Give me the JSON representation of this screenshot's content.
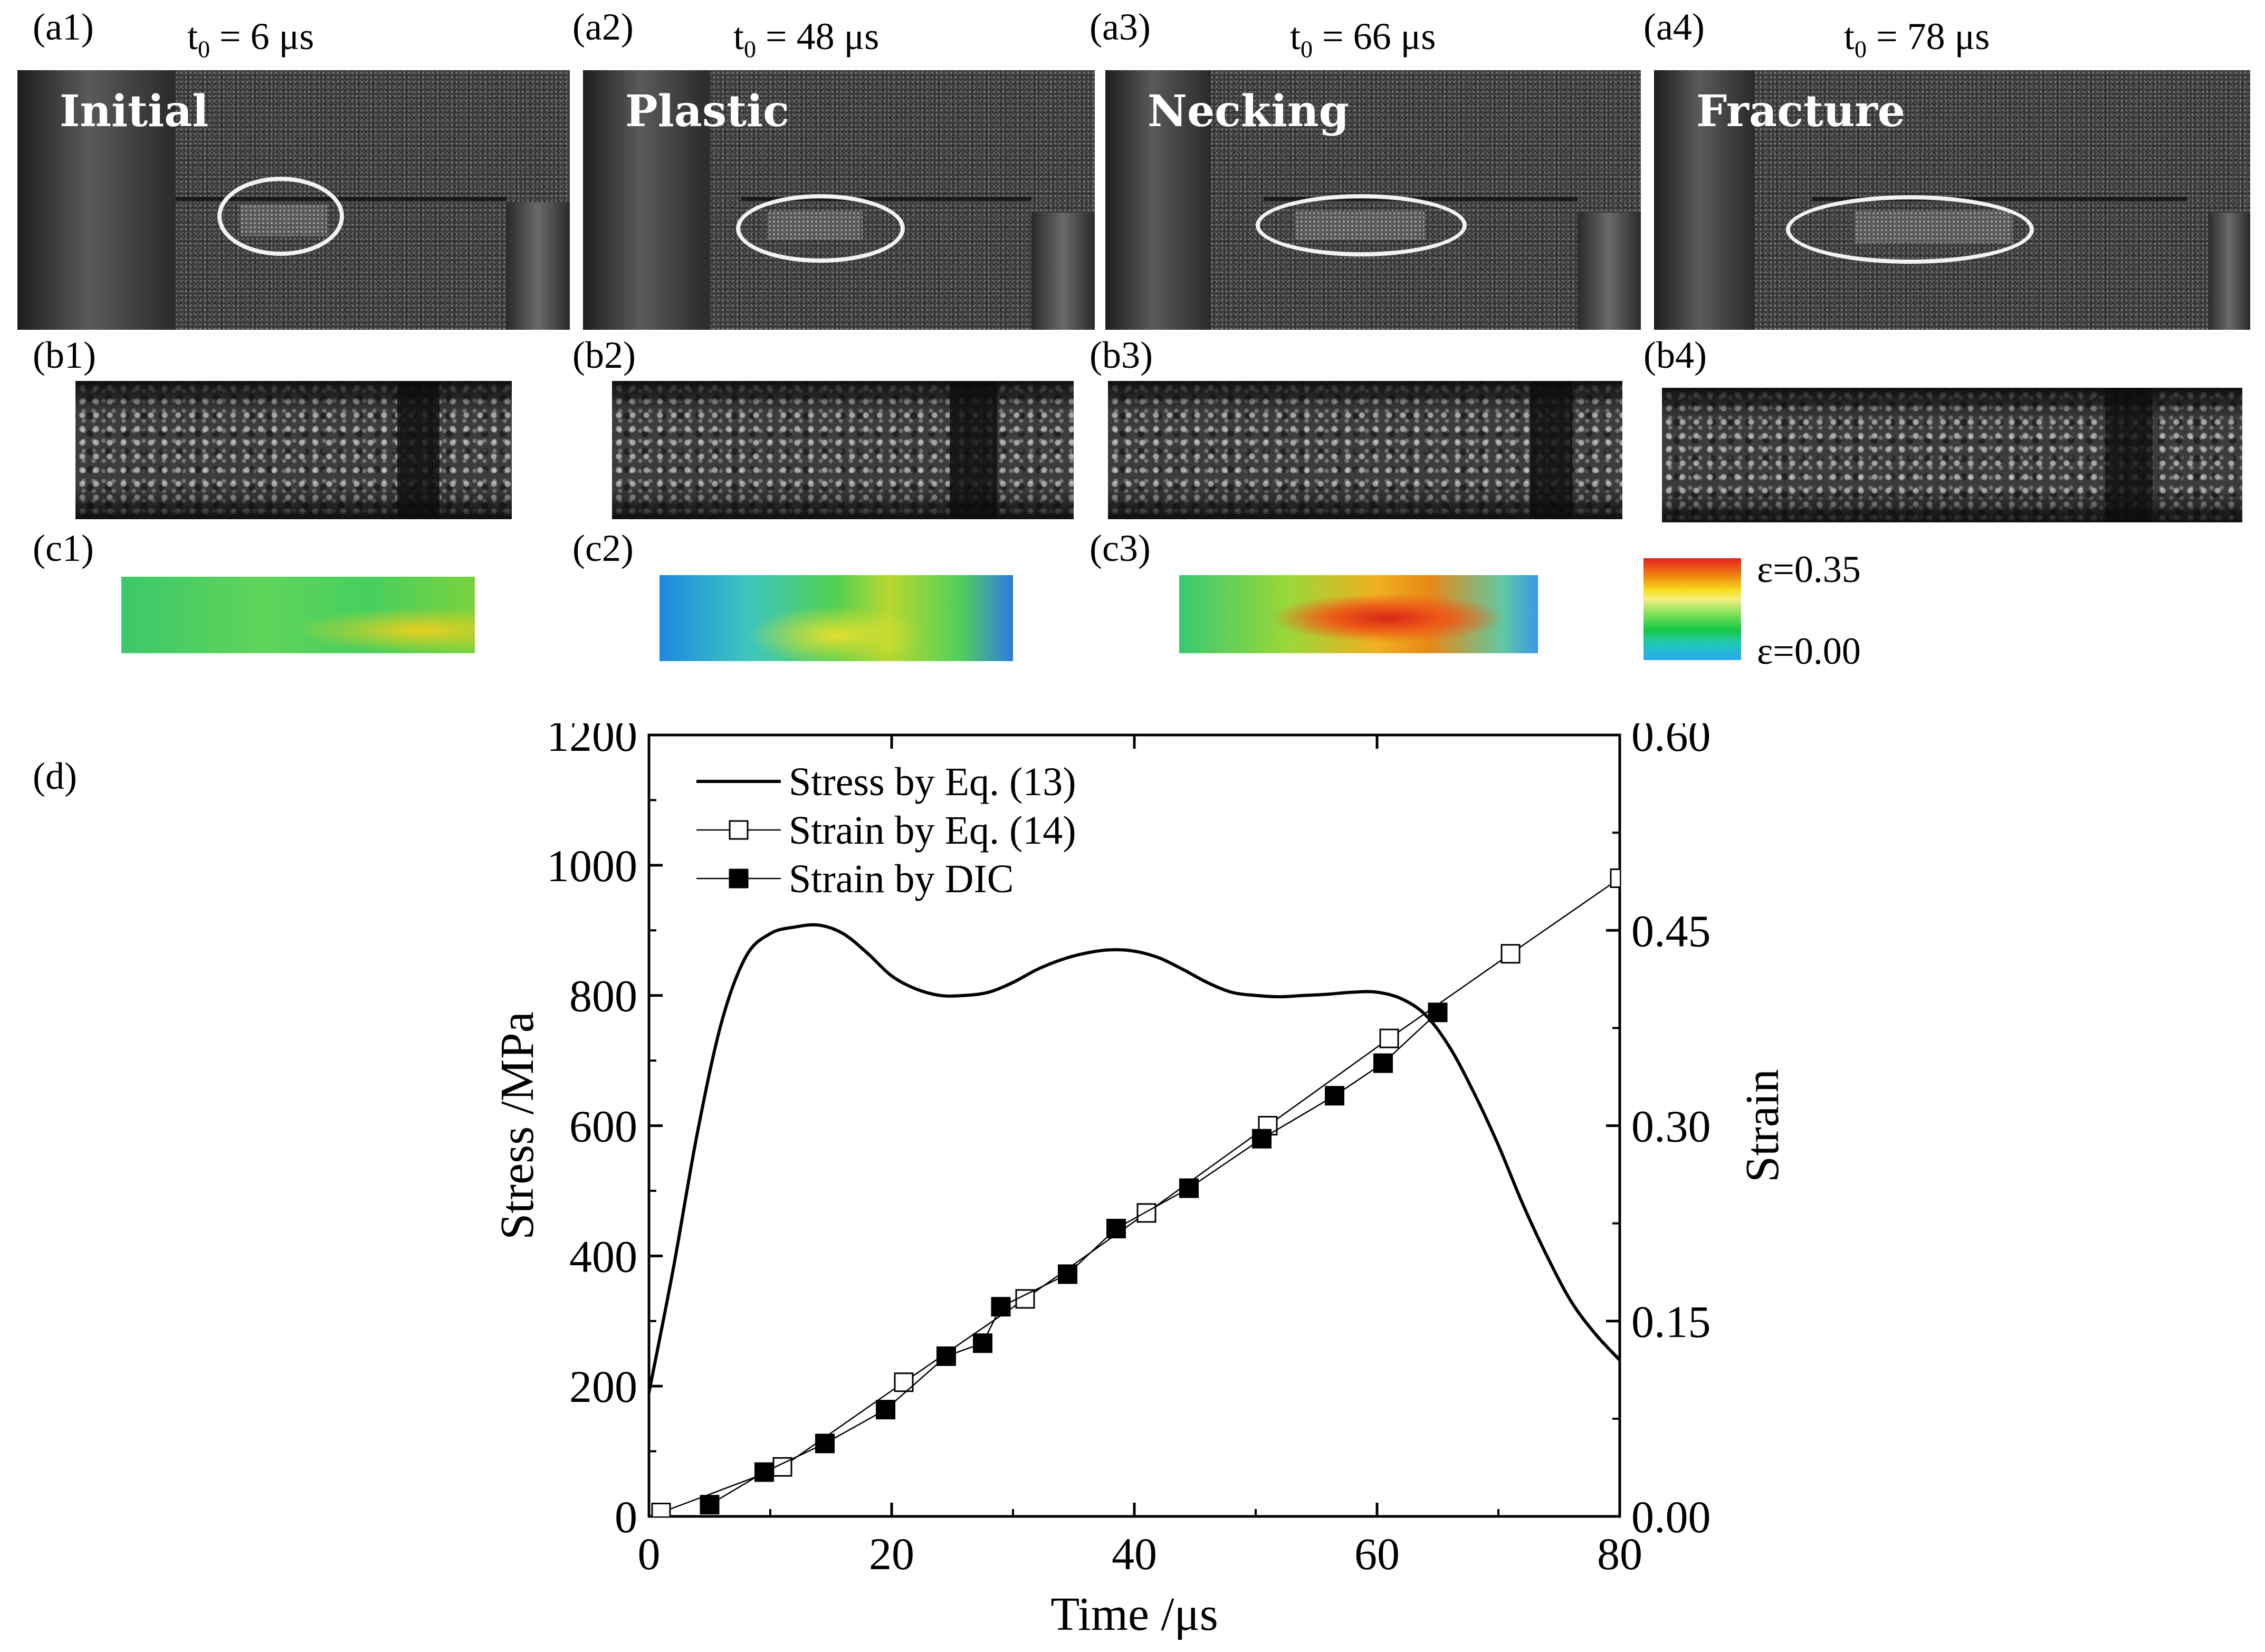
{
  "panels_a": [
    {
      "label": "(a1)",
      "time_prefix": "t",
      "time_sub": "0",
      "time_value": " = 6 μs",
      "stage": "Initial"
    },
    {
      "label": "(a2)",
      "time_prefix": "t",
      "time_sub": "0",
      "time_value": " = 48 μs",
      "stage": "Plastic"
    },
    {
      "label": "(a3)",
      "time_prefix": "t",
      "time_sub": "0",
      "time_value": " = 66 μs",
      "stage": "Necking"
    },
    {
      "label": "(a4)",
      "time_prefix": "t",
      "time_sub": "0",
      "time_value": " = 78 μs",
      "stage": "Fracture"
    }
  ],
  "panels_b": [
    "(b1)",
    "(b2)",
    "(b3)",
    "(b4)"
  ],
  "panels_c": [
    "(c1)",
    "(c2)",
    "(c3)"
  ],
  "strain_colorbar": {
    "max_label": "ε=0.35",
    "min_label": "ε=0.00",
    "colors": [
      "#e52020",
      "#f08a10",
      "#f5e020",
      "#7ee05a",
      "#16c840",
      "#22c8b8",
      "#2aa8f0"
    ]
  },
  "panel_d_label": "(d)",
  "chart_data": {
    "type": "line",
    "xlabel": "Time /μs",
    "ylabel": "Stress /MPa",
    "y2label": "Strain",
    "xlim": [
      0,
      80
    ],
    "ylim": [
      0,
      1200
    ],
    "y2lim": [
      0,
      0.6
    ],
    "xticks": [
      "0",
      "20",
      "40",
      "60",
      "80"
    ],
    "yticks": [
      "0",
      "200",
      "400",
      "600",
      "800",
      "1000",
      "1200"
    ],
    "y2ticks": [
      "0.00",
      "0.15",
      "0.30",
      "0.45",
      "0.60"
    ],
    "legend_position": "top-left",
    "grid": false,
    "series": [
      {
        "name": "Stress by Eq. (13)",
        "axis": "left",
        "style": "solid-line",
        "color": "#000000",
        "x": [
          0,
          2,
          4,
          6,
          8,
          10,
          12,
          14,
          16,
          18,
          20,
          22,
          24,
          26,
          28,
          30,
          32,
          34,
          36,
          38,
          40,
          42,
          44,
          46,
          48,
          50,
          52,
          54,
          56,
          58,
          60,
          62,
          64,
          66,
          68,
          70,
          72,
          74,
          76,
          78,
          80
        ],
        "y": [
          190,
          380,
          590,
          760,
          860,
          895,
          905,
          908,
          895,
          865,
          830,
          810,
          800,
          800,
          805,
          820,
          840,
          855,
          865,
          870,
          868,
          858,
          840,
          820,
          805,
          800,
          798,
          800,
          802,
          805,
          805,
          795,
          770,
          720,
          650,
          570,
          480,
          400,
          330,
          280,
          240
        ]
      },
      {
        "name": "Strain by Eq. (14)",
        "axis": "right",
        "style": "line-open-square",
        "color": "#000000",
        "x": [
          1,
          11,
          21,
          31,
          41,
          51,
          61,
          71,
          80
        ],
        "y": [
          0.003,
          0.038,
          0.103,
          0.167,
          0.233,
          0.3,
          0.367,
          0.432,
          0.49
        ]
      },
      {
        "name": "Strain by DIC",
        "axis": "right",
        "style": "line-filled-square",
        "color": "#000000",
        "x": [
          5,
          9.5,
          14.5,
          19.5,
          24.5,
          27.5,
          29,
          34.5,
          38.5,
          44.5,
          50.5,
          56.5,
          60.5,
          65
        ],
        "y": [
          0.009,
          0.034,
          0.056,
          0.082,
          0.123,
          0.133,
          0.161,
          0.186,
          0.221,
          0.252,
          0.29,
          0.323,
          0.348,
          0.387
        ]
      }
    ]
  }
}
